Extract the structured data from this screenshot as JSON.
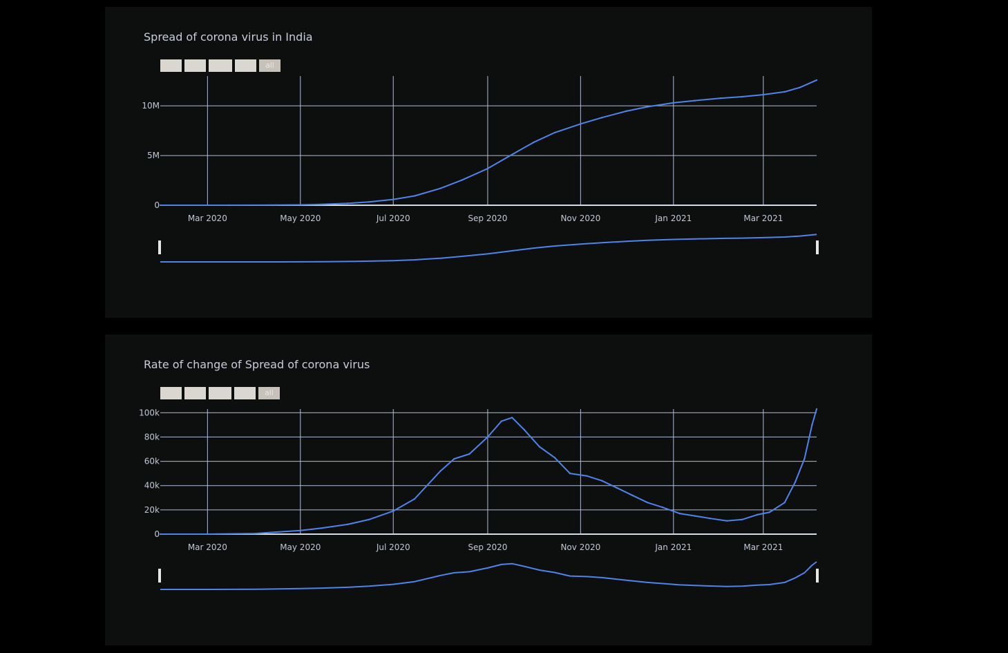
{
  "range_buttons": [
    "",
    "",
    "",
    "",
    "all"
  ],
  "chart_data": [
    {
      "type": "line",
      "title": "Spread of corona virus in India",
      "xlabel": "",
      "ylabel": "",
      "ylim": [
        0,
        13000000
      ],
      "y_ticks": [
        {
          "value": 0,
          "label": "0"
        },
        {
          "value": 5000000,
          "label": "5M"
        },
        {
          "value": 10000000,
          "label": "10M"
        }
      ],
      "x_range": [
        "2020-01-30",
        "2021-04-05"
      ],
      "x_ticks": [
        {
          "date": "2020-03-01",
          "label": "Mar 2020"
        },
        {
          "date": "2020-05-01",
          "label": "May 2020"
        },
        {
          "date": "2020-07-01",
          "label": "Jul 2020"
        },
        {
          "date": "2020-09-01",
          "label": "Sep 2020"
        },
        {
          "date": "2020-11-01",
          "label": "Nov 2020"
        },
        {
          "date": "2021-01-01",
          "label": "Jan 2021"
        },
        {
          "date": "2021-03-01",
          "label": "Mar 2021"
        }
      ],
      "grid": true,
      "rangeslider": true,
      "series": [
        {
          "x": [
            "2020-01-30",
            "2020-03-15",
            "2020-04-15",
            "2020-05-01",
            "2020-05-15",
            "2020-06-01",
            "2020-06-15",
            "2020-07-01",
            "2020-07-15",
            "2020-08-01",
            "2020-08-15",
            "2020-09-01",
            "2020-09-15",
            "2020-10-01",
            "2020-10-15",
            "2020-11-01",
            "2020-11-15",
            "2020-12-01",
            "2020-12-15",
            "2021-01-01",
            "2021-01-15",
            "2021-02-01",
            "2021-02-15",
            "2021-03-01",
            "2021-03-15",
            "2021-03-25",
            "2021-04-05"
          ],
          "y": [
            0,
            100,
            12000,
            35000,
            82000,
            190000,
            333000,
            585000,
            937000,
            1695000,
            2526000,
            3691000,
            4930000,
            6313000,
            7307000,
            8185000,
            8814000,
            9463000,
            9907000,
            10305000,
            10528000,
            10767000,
            10916000,
            11124000,
            11410000,
            11847000,
            12590000
          ]
        }
      ]
    },
    {
      "type": "line",
      "title": "Rate of change of Spread of corona virus",
      "xlabel": "",
      "ylabel": "",
      "ylim": [
        0,
        103000
      ],
      "y_ticks": [
        {
          "value": 0,
          "label": "0"
        },
        {
          "value": 20000,
          "label": "20k"
        },
        {
          "value": 40000,
          "label": "40k"
        },
        {
          "value": 60000,
          "label": "60k"
        },
        {
          "value": 80000,
          "label": "80k"
        },
        {
          "value": 100000,
          "label": "100k"
        }
      ],
      "x_range": [
        "2020-01-30",
        "2021-04-05"
      ],
      "x_ticks": [
        {
          "date": "2020-03-01",
          "label": "Mar 2020"
        },
        {
          "date": "2020-05-01",
          "label": "May 2020"
        },
        {
          "date": "2020-07-01",
          "label": "Jul 2020"
        },
        {
          "date": "2020-09-01",
          "label": "Sep 2020"
        },
        {
          "date": "2020-11-01",
          "label": "Nov 2020"
        },
        {
          "date": "2021-01-01",
          "label": "Jan 2021"
        },
        {
          "date": "2021-03-01",
          "label": "Mar 2021"
        }
      ],
      "grid": true,
      "rangeslider": true,
      "series": [
        {
          "x": [
            "2020-01-30",
            "2020-03-01",
            "2020-04-01",
            "2020-05-01",
            "2020-05-15",
            "2020-06-01",
            "2020-06-15",
            "2020-07-01",
            "2020-07-15",
            "2020-08-01",
            "2020-08-10",
            "2020-08-20",
            "2020-09-01",
            "2020-09-10",
            "2020-09-17",
            "2020-09-25",
            "2020-10-05",
            "2020-10-15",
            "2020-10-25",
            "2020-11-05",
            "2020-11-15",
            "2020-11-25",
            "2020-12-05",
            "2020-12-15",
            "2020-12-25",
            "2021-01-05",
            "2021-01-15",
            "2021-01-25",
            "2021-02-05",
            "2021-02-15",
            "2021-02-25",
            "2021-03-05",
            "2021-03-15",
            "2021-03-22",
            "2021-03-28",
            "2021-04-02",
            "2021-04-05"
          ],
          "y": [
            0,
            0,
            500,
            3000,
            5000,
            8000,
            12000,
            19000,
            29000,
            52000,
            62000,
            66000,
            80000,
            93000,
            96000,
            86000,
            72000,
            63000,
            50000,
            48000,
            44000,
            38000,
            32000,
            26000,
            22000,
            17000,
            15000,
            13000,
            11000,
            12000,
            16000,
            18000,
            26000,
            43000,
            62000,
            90000,
            103000
          ]
        }
      ]
    }
  ]
}
